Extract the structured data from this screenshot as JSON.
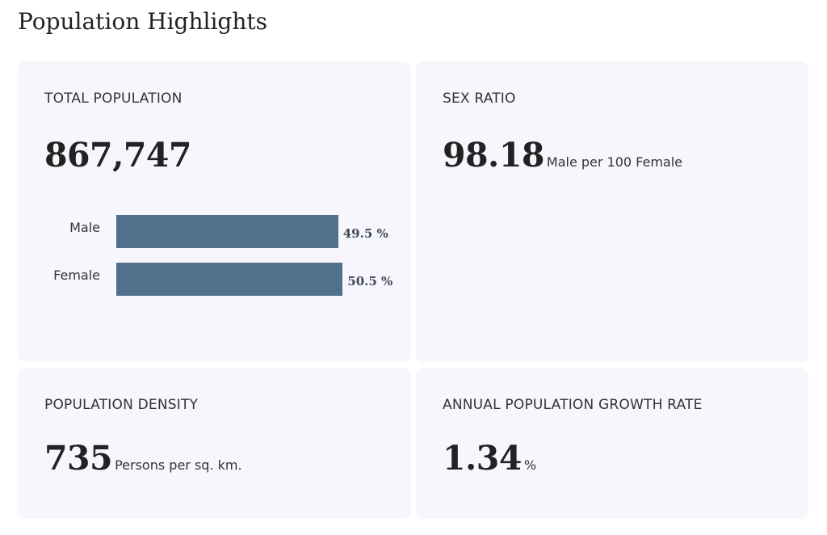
{
  "page": {
    "title": "Population Highlights"
  },
  "cards": {
    "total_population": {
      "label": "TOTAL POPULATION",
      "value": "867,747"
    },
    "sex_ratio": {
      "label": "SEX RATIO",
      "value": "98.18",
      "unit": "Male per 100 Female"
    },
    "population_density": {
      "label": "POPULATION DENSITY",
      "value": "735",
      "unit": "Persons per sq. km."
    },
    "growth_rate": {
      "label": "ANNUAL POPULATION GROWTH RATE",
      "value": "1.34",
      "unit": "%"
    }
  },
  "chart_data": {
    "type": "bar",
    "orientation": "horizontal",
    "categories": [
      "Male",
      "Female"
    ],
    "values": [
      49.5,
      50.5
    ],
    "value_labels": [
      "49.5 %",
      "50.5 %"
    ],
    "unit": "%",
    "color": "#51708c"
  },
  "colors": {
    "card_bg": "#f7f6fc",
    "bar": "#51708c"
  }
}
